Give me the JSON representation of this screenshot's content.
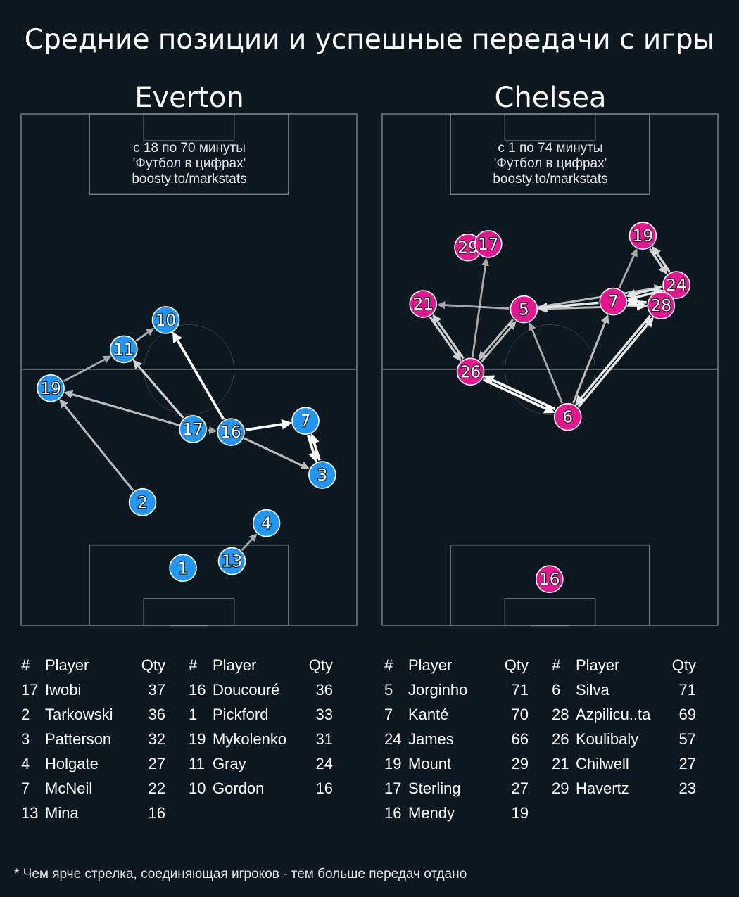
{
  "title": "Средние позиции и успешные передачи с игры",
  "footnote": "* Чем ярче стрелка, соединяющая игроков - тем больше передач отдано",
  "source_lines": [
    "'Футбол в цифрах'",
    "boosty.to/markstats"
  ],
  "table_headers": {
    "num": "#",
    "player": "Player",
    "qty": "Qty"
  },
  "teams": [
    {
      "name": "Everton",
      "color": "#2196f3",
      "period": "с 18 по 70 минуты",
      "players": [
        {
          "num": "17",
          "name": "Iwobi",
          "qty": "37"
        },
        {
          "num": "2",
          "name": "Tarkowski",
          "qty": "36"
        },
        {
          "num": "3",
          "name": "Patterson",
          "qty": "32"
        },
        {
          "num": "4",
          "name": "Holgate",
          "qty": "27"
        },
        {
          "num": "7",
          "name": "McNeil",
          "qty": "22"
        },
        {
          "num": "13",
          "name": "Mina",
          "qty": "16"
        },
        {
          "num": "16",
          "name": "Doucouré",
          "qty": "36"
        },
        {
          "num": "1",
          "name": "Pickford",
          "qty": "33"
        },
        {
          "num": "19",
          "name": "Mykolenko",
          "qty": "31"
        },
        {
          "num": "11",
          "name": "Gray",
          "qty": "24"
        },
        {
          "num": "10",
          "name": "Gordon",
          "qty": "16"
        }
      ]
    },
    {
      "name": "Chelsea",
      "color": "#e5168f",
      "period": "с 1 по 74 минуты",
      "players": [
        {
          "num": "5",
          "name": "Jorginho",
          "qty": "71"
        },
        {
          "num": "7",
          "name": "Kanté",
          "qty": "70"
        },
        {
          "num": "24",
          "name": "James",
          "qty": "66"
        },
        {
          "num": "19",
          "name": "Mount",
          "qty": "29"
        },
        {
          "num": "17",
          "name": "Sterling",
          "qty": "27"
        },
        {
          "num": "16",
          "name": "Mendy",
          "qty": "19"
        },
        {
          "num": "6",
          "name": "Silva",
          "qty": "71"
        },
        {
          "num": "28",
          "name": "Azpilicu..ta",
          "qty": "69"
        },
        {
          "num": "26",
          "name": "Koulibaly",
          "qty": "57"
        },
        {
          "num": "21",
          "name": "Chilwell",
          "qty": "27"
        },
        {
          "num": "29",
          "name": "Havertz",
          "qty": "23"
        }
      ]
    }
  ],
  "chart_data": [
    {
      "type": "scatter",
      "team": "Everton",
      "axes": {
        "x_range": [
          0,
          68
        ],
        "y_range": [
          0,
          105
        ],
        "y_direction": "attack upward"
      },
      "points": [
        {
          "label": "10",
          "x": 29.3,
          "y": 62.7
        },
        {
          "label": "11",
          "x": 20.8,
          "y": 56.7
        },
        {
          "label": "19",
          "x": 6.0,
          "y": 48.7
        },
        {
          "label": "17",
          "x": 34.8,
          "y": 40.3
        },
        {
          "label": "16",
          "x": 42.5,
          "y": 39.7
        },
        {
          "label": "7",
          "x": 57.6,
          "y": 42.0
        },
        {
          "label": "3",
          "x": 61.0,
          "y": 30.9
        },
        {
          "label": "2",
          "x": 24.6,
          "y": 25.3
        },
        {
          "label": "4",
          "x": 49.7,
          "y": 21.0
        },
        {
          "label": "13",
          "x": 42.7,
          "y": 13.2
        },
        {
          "label": "1",
          "x": 32.8,
          "y": 11.8
        }
      ],
      "passes": [
        {
          "from": "16",
          "to": "10",
          "intensity": 1.0
        },
        {
          "from": "16",
          "to": "7",
          "intensity": 1.0
        },
        {
          "from": "7",
          "to": "3",
          "intensity": 1.0
        },
        {
          "from": "3",
          "to": "7",
          "intensity": 1.0
        },
        {
          "from": "16",
          "to": "3",
          "intensity": 0.7
        },
        {
          "from": "17",
          "to": "19",
          "intensity": 0.7
        },
        {
          "from": "17",
          "to": "11",
          "intensity": 0.8
        },
        {
          "from": "17",
          "to": "16",
          "intensity": 0.6
        },
        {
          "from": "11",
          "to": "10",
          "intensity": 0.6
        },
        {
          "from": "19",
          "to": "11",
          "intensity": 0.6
        },
        {
          "from": "2",
          "to": "19",
          "intensity": 0.7
        },
        {
          "from": "13",
          "to": "4",
          "intensity": 0.6
        }
      ]
    },
    {
      "type": "scatter",
      "team": "Chelsea",
      "axes": {
        "x_range": [
          0,
          68
        ],
        "y_range": [
          0,
          105
        ],
        "y_direction": "attack upward"
      },
      "points": [
        {
          "label": "29",
          "x": 17.4,
          "y": 77.6
        },
        {
          "label": "17",
          "x": 21.5,
          "y": 78.3
        },
        {
          "label": "19",
          "x": 52.8,
          "y": 80.0
        },
        {
          "label": "24",
          "x": 59.6,
          "y": 69.9
        },
        {
          "label": "7",
          "x": 46.8,
          "y": 66.5
        },
        {
          "label": "28",
          "x": 56.5,
          "y": 65.7
        },
        {
          "label": "5",
          "x": 28.7,
          "y": 64.9
        },
        {
          "label": "21",
          "x": 8.3,
          "y": 66.0
        },
        {
          "label": "26",
          "x": 17.9,
          "y": 52.1
        },
        {
          "label": "6",
          "x": 37.6,
          "y": 42.8
        },
        {
          "label": "16",
          "x": 33.9,
          "y": 9.5
        }
      ],
      "passes": [
        {
          "from": "6",
          "to": "26",
          "intensity": 1.0
        },
        {
          "from": "26",
          "to": "6",
          "intensity": 1.0
        },
        {
          "from": "6",
          "to": "28",
          "intensity": 0.9
        },
        {
          "from": "28",
          "to": "6",
          "intensity": 0.9
        },
        {
          "from": "7",
          "to": "28",
          "intensity": 1.0
        },
        {
          "from": "28",
          "to": "7",
          "intensity": 1.0
        },
        {
          "from": "24",
          "to": "7",
          "intensity": 0.9
        },
        {
          "from": "7",
          "to": "24",
          "intensity": 0.9
        },
        {
          "from": "24",
          "to": "19",
          "intensity": 0.8
        },
        {
          "from": "19",
          "to": "24",
          "intensity": 0.8
        },
        {
          "from": "28",
          "to": "24",
          "intensity": 0.8
        },
        {
          "from": "7",
          "to": "5",
          "intensity": 0.9
        },
        {
          "from": "5",
          "to": "24",
          "intensity": 0.7
        },
        {
          "from": "28",
          "to": "5",
          "intensity": 0.7
        },
        {
          "from": "7",
          "to": "19",
          "intensity": 0.6
        },
        {
          "from": "26",
          "to": "5",
          "intensity": 0.7
        },
        {
          "from": "5",
          "to": "26",
          "intensity": 0.7
        },
        {
          "from": "5",
          "to": "21",
          "intensity": 0.6
        },
        {
          "from": "21",
          "to": "26",
          "intensity": 0.8
        },
        {
          "from": "26",
          "to": "21",
          "intensity": 0.8
        },
        {
          "from": "26",
          "to": "17",
          "intensity": 0.6
        },
        {
          "from": "6",
          "to": "5",
          "intensity": 0.6
        },
        {
          "from": "6",
          "to": "7",
          "intensity": 0.7
        }
      ]
    }
  ]
}
